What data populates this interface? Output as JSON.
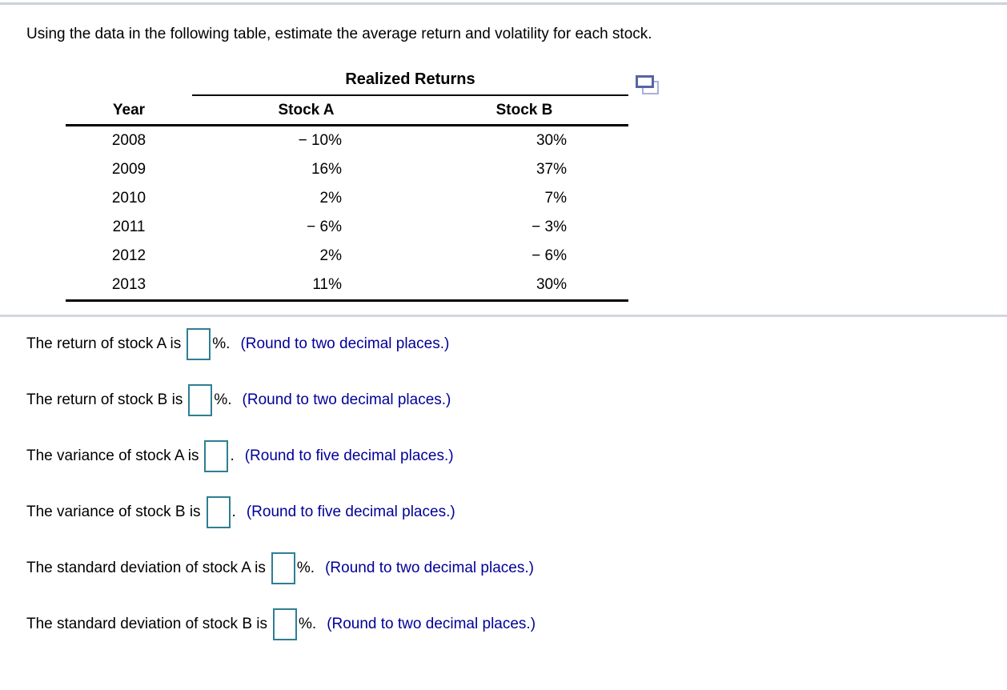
{
  "question": "Using the data in the following table, estimate the average return and volatility for each stock.",
  "table": {
    "group_header": "Realized Returns",
    "columns": [
      "Year",
      "Stock A",
      "Stock B"
    ],
    "rows": [
      {
        "year": "2008",
        "stock_a": "− 10%",
        "stock_b": "30%"
      },
      {
        "year": "2009",
        "stock_a": "16%",
        "stock_b": "37%"
      },
      {
        "year": "2010",
        "stock_a": "2%",
        "stock_b": "7%"
      },
      {
        "year": "2011",
        "stock_a": "− 6%",
        "stock_b": "− 3%"
      },
      {
        "year": "2012",
        "stock_a": "2%",
        "stock_b": "− 6%"
      },
      {
        "year": "2013",
        "stock_a": "11%",
        "stock_b": "30%"
      }
    ]
  },
  "icons": {
    "copy_table_icon": "copy-table"
  },
  "answers": [
    {
      "prefix": "The return of stock A is",
      "value": "",
      "placeholder": "",
      "suffix": "%.",
      "note": "(Round to two decimal places.)"
    },
    {
      "prefix": "The return of stock B is",
      "value": "",
      "placeholder": "",
      "suffix": "%.",
      "note": "(Round to two decimal places.)"
    },
    {
      "prefix": "The variance of stock A is",
      "value": "",
      "placeholder": "",
      "suffix": ".",
      "note": "(Round to five decimal places.)"
    },
    {
      "prefix": "The variance of stock B is",
      "value": "",
      "placeholder": "",
      "suffix": ".",
      "note": "(Round to five decimal places.)"
    },
    {
      "prefix": "The standard deviation of stock A is",
      "value": "",
      "placeholder": "",
      "suffix": "%.",
      "note": "(Round to two decimal places.)"
    },
    {
      "prefix": "The standard deviation of stock B is",
      "value": "",
      "placeholder": "",
      "suffix": "%.",
      "note": "(Round to two decimal places.)"
    }
  ],
  "colors": {
    "answer_box_border": "#2f7e93",
    "note_text": "#000099",
    "icon_front": "#5764a9",
    "icon_back": "#a9b1d4",
    "divider": "#d2d6df"
  }
}
